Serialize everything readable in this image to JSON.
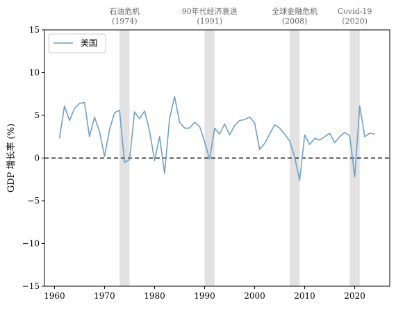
{
  "chart_data": {
    "type": "line",
    "title": "",
    "xlabel": "",
    "ylabel": "GDP 增长率 (%)",
    "xlim": [
      1958,
      2027
    ],
    "ylim": [
      -15,
      15
    ],
    "xticks": [
      1960,
      1970,
      1980,
      1990,
      2000,
      2010,
      2020
    ],
    "yticks": [
      -15,
      -10,
      -5,
      0,
      5,
      10,
      15
    ],
    "ytick_labels": [
      "−15",
      "−10",
      "−5",
      "0",
      "5",
      "10",
      "15"
    ],
    "grid": false,
    "legend": {
      "placement": "top-left",
      "entries": [
        "美国"
      ]
    },
    "reference_line": {
      "y": 0,
      "style": "dashed",
      "color": "#000000"
    },
    "series": [
      {
        "name": "美国",
        "color": "#6f9fc8",
        "x": [
          1961,
          1962,
          1963,
          1964,
          1965,
          1966,
          1967,
          1968,
          1969,
          1970,
          1971,
          1972,
          1973,
          1974,
          1975,
          1976,
          1977,
          1978,
          1979,
          1980,
          1981,
          1982,
          1983,
          1984,
          1985,
          1986,
          1987,
          1988,
          1989,
          1990,
          1991,
          1992,
          1993,
          1994,
          1995,
          1996,
          1997,
          1998,
          1999,
          2000,
          2001,
          2002,
          2003,
          2004,
          2005,
          2006,
          2007,
          2008,
          2009,
          2010,
          2011,
          2012,
          2013,
          2014,
          2015,
          2016,
          2017,
          2018,
          2019,
          2020,
          2021,
          2022,
          2023,
          2024
        ],
        "values": [
          2.3,
          6.1,
          4.4,
          5.8,
          6.4,
          6.5,
          2.5,
          4.8,
          3.1,
          0.2,
          3.3,
          5.3,
          5.6,
          -0.5,
          -0.2,
          5.4,
          4.6,
          5.5,
          3.2,
          -0.3,
          2.5,
          -1.8,
          4.6,
          7.2,
          4.2,
          3.5,
          3.5,
          4.2,
          3.7,
          1.9,
          -0.1,
          3.5,
          2.8,
          4.0,
          2.7,
          3.8,
          4.4,
          4.5,
          4.8,
          4.1,
          1.0,
          1.7,
          2.8,
          3.9,
          3.5,
          2.8,
          2.0,
          0.1,
          -2.6,
          2.7,
          1.6,
          2.3,
          2.1,
          2.5,
          2.9,
          1.8,
          2.5,
          3.0,
          2.6,
          -2.2,
          6.1,
          2.5,
          2.9,
          2.8
        ]
      }
    ],
    "events": [
      {
        "label": "石油危机",
        "year_label": "(1974)",
        "start": 1973,
        "end": 1975
      },
      {
        "label": "90年代经济衰退",
        "year_label": "(1991)",
        "start": 1990,
        "end": 1992
      },
      {
        "label": "全球金融危机",
        "year_label": "(2008)",
        "start": 2007,
        "end": 2009
      },
      {
        "label": "Covid-19",
        "year_label": "(2020)",
        "start": 2019,
        "end": 2021
      }
    ]
  }
}
